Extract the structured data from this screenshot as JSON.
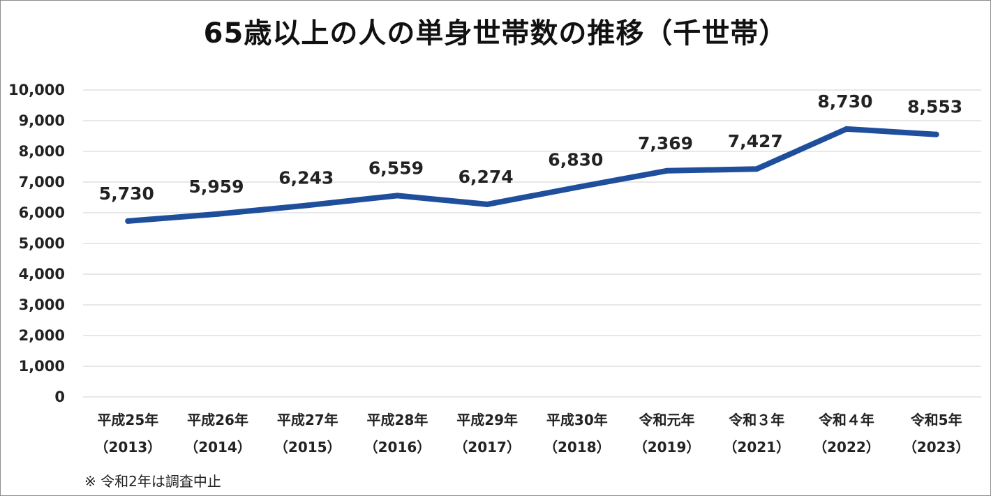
{
  "chart_data": {
    "type": "line",
    "title": "65歳以上の人の単身世帯数の推移（千世帯）",
    "xlabel": "",
    "ylabel": "",
    "categories": [
      [
        "平成25年",
        "（2013）"
      ],
      [
        "平成26年",
        "（2014）"
      ],
      [
        "平成27年",
        "（2015）"
      ],
      [
        "平成28年",
        "（2016）"
      ],
      [
        "平成29年",
        "（2017）"
      ],
      [
        "平成30年",
        "（2018）"
      ],
      [
        "令和元年",
        "（2019）"
      ],
      [
        "令和３年",
        "（2021）"
      ],
      [
        "令和４年",
        "（2022）"
      ],
      [
        "令和5年",
        "（2023）"
      ]
    ],
    "series": [
      {
        "values": [
          5730,
          5959,
          6243,
          6559,
          6274,
          6830,
          7369,
          7427,
          8730,
          8553
        ],
        "data_labels": [
          "5,730",
          "5,959",
          "6,243",
          "6,559",
          "6,274",
          "6,830",
          "7,369",
          "7,427",
          "8,730",
          "8,553"
        ],
        "color": "#1f4e9c"
      }
    ],
    "ylim": [
      0,
      10000
    ],
    "yticks": [
      0,
      1000,
      2000,
      3000,
      4000,
      5000,
      6000,
      7000,
      8000,
      9000,
      10000
    ],
    "ytick_labels": [
      "0",
      "1,000",
      "2,000",
      "3,000",
      "4,000",
      "5,000",
      "6,000",
      "7,000",
      "8,000",
      "9,000",
      "10,000"
    ],
    "grid": true,
    "legend": "none",
    "gridline_color": "#d9d9d9"
  },
  "footnote": "※ 令和2年は調査中止"
}
